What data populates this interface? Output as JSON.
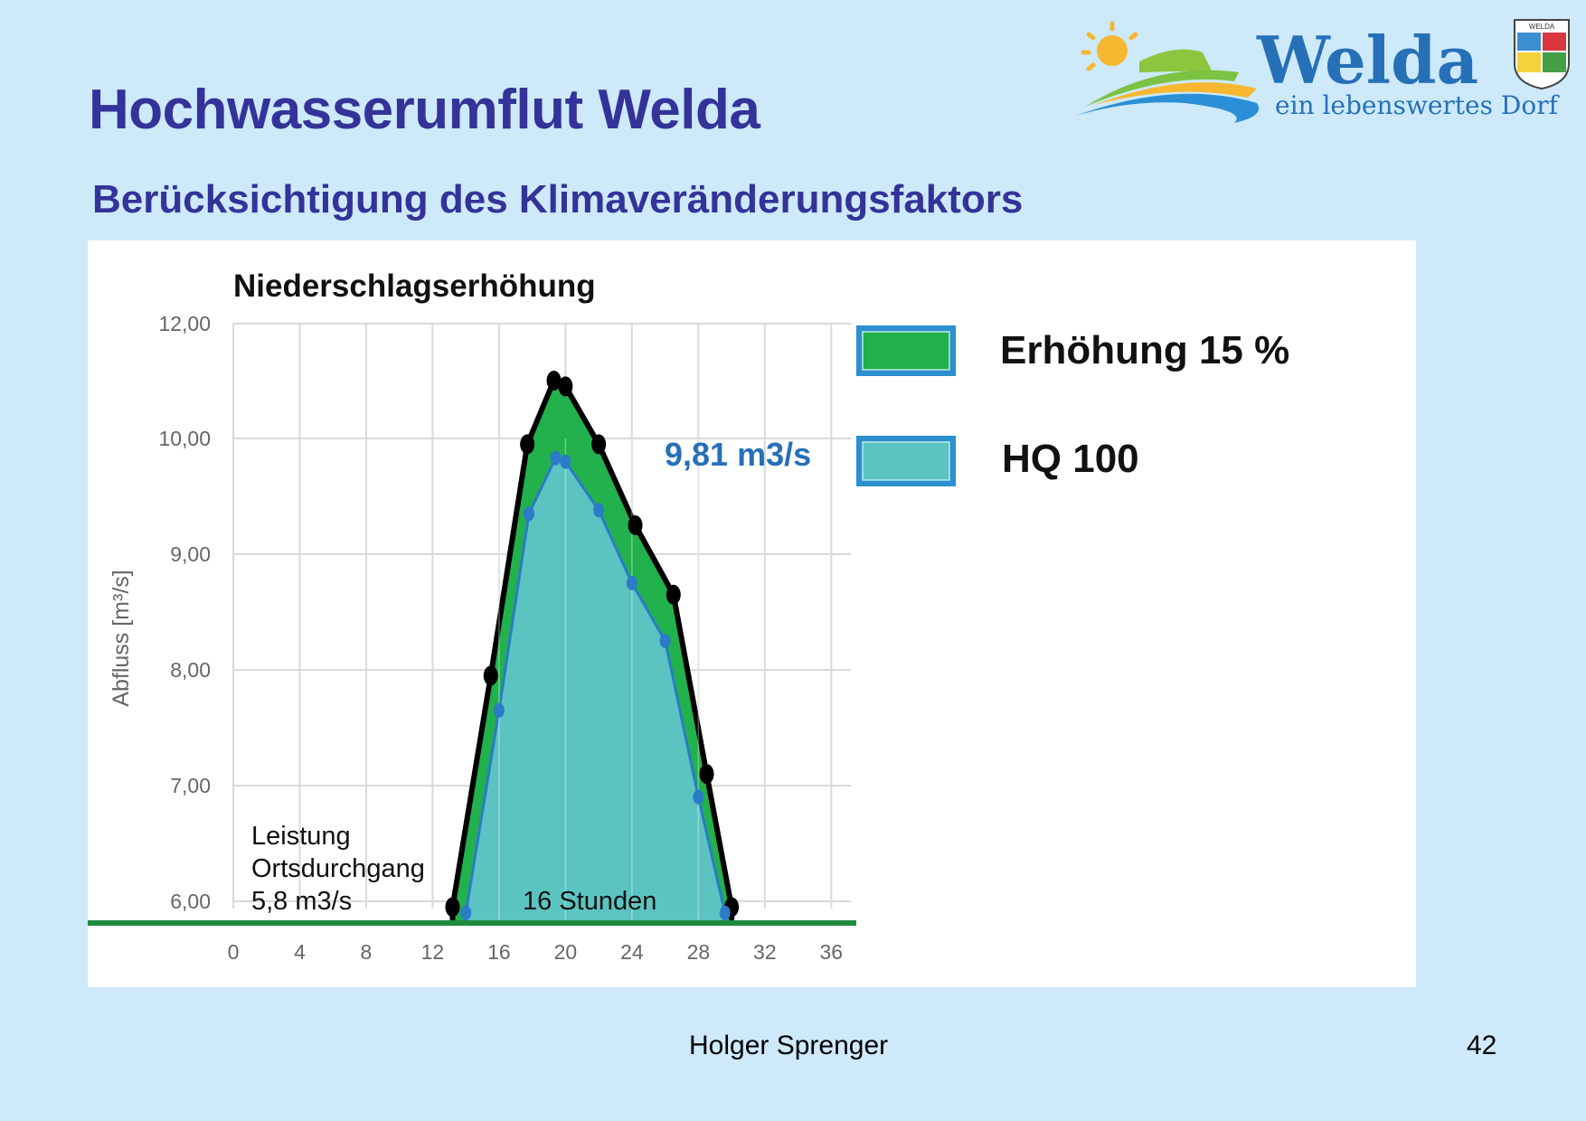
{
  "slide": {
    "title": "Hochwasserumflut Welda",
    "subtitle": "Berücksichtigung des Klimaveränderungsfaktors",
    "logo": {
      "wordmark": "Welda",
      "tagline": "ein lebenswertes Dorf",
      "crest_text": "WELDA",
      "icon": "welda-village-logo-icon"
    },
    "footer": {
      "author": "Holger Sprenger",
      "page_number": "42"
    }
  },
  "colors": {
    "background": "#cde9fa",
    "title": "#333399",
    "erhoehung_fill": "#22b14c",
    "hq100_fill": "#5bc4c0",
    "hq100_line": "#2b7bc9",
    "outline": "#000000",
    "threshold_line": "#1e8a3c",
    "annotation_blue": "#2670b8"
  },
  "chart_data": {
    "type": "area",
    "title": "Niederschlagserhöhung",
    "xlabel": "",
    "ylabel": "Abfluss [m³/s]",
    "xlim": [
      0,
      36
    ],
    "ylim": [
      6,
      12
    ],
    "x_ticks": [
      "0",
      "4",
      "8",
      "12",
      "16",
      "20",
      "24",
      "28",
      "32",
      "36"
    ],
    "y_ticks": [
      "6,00",
      "7,00",
      "8,00",
      "9,00",
      "10,00",
      "12,00"
    ],
    "grid": true,
    "legend_position": "right",
    "series": [
      {
        "name": "Erhöhung 15 %",
        "color": "#22b14c",
        "x": [
          13.2,
          15.5,
          17.7,
          19.3,
          20.0,
          22.0,
          24.2,
          26.5,
          28.5,
          30.0
        ],
        "values": [
          5.95,
          7.95,
          9.95,
          10.5,
          10.45,
          9.95,
          9.25,
          8.65,
          7.1,
          5.95
        ]
      },
      {
        "name": "HQ 100",
        "color": "#5bc4c0",
        "x": [
          14.0,
          16.0,
          17.8,
          19.4,
          20.0,
          22.0,
          24.0,
          26.0,
          28.0,
          29.6
        ],
        "values": [
          5.9,
          7.65,
          9.35,
          9.83,
          9.8,
          9.38,
          8.75,
          8.25,
          6.9,
          5.9
        ]
      }
    ],
    "annotations": [
      {
        "text": "9,81 m3/s",
        "note": "HQ 100 peak"
      },
      {
        "text": "16 Stunden",
        "note": "duration above threshold"
      },
      {
        "lines": [
          "Leistung",
          "Ortsdurchgang",
          "5,8 m3/s"
        ],
        "note": "threshold capacity line at 5,8 m3/s"
      }
    ],
    "threshold": {
      "label": "Leistung Ortsdurchgang 5,8 m3/s",
      "value": 5.8
    }
  },
  "legend": [
    {
      "label": "Erhöhung 15 %"
    },
    {
      "label": "HQ 100"
    }
  ]
}
